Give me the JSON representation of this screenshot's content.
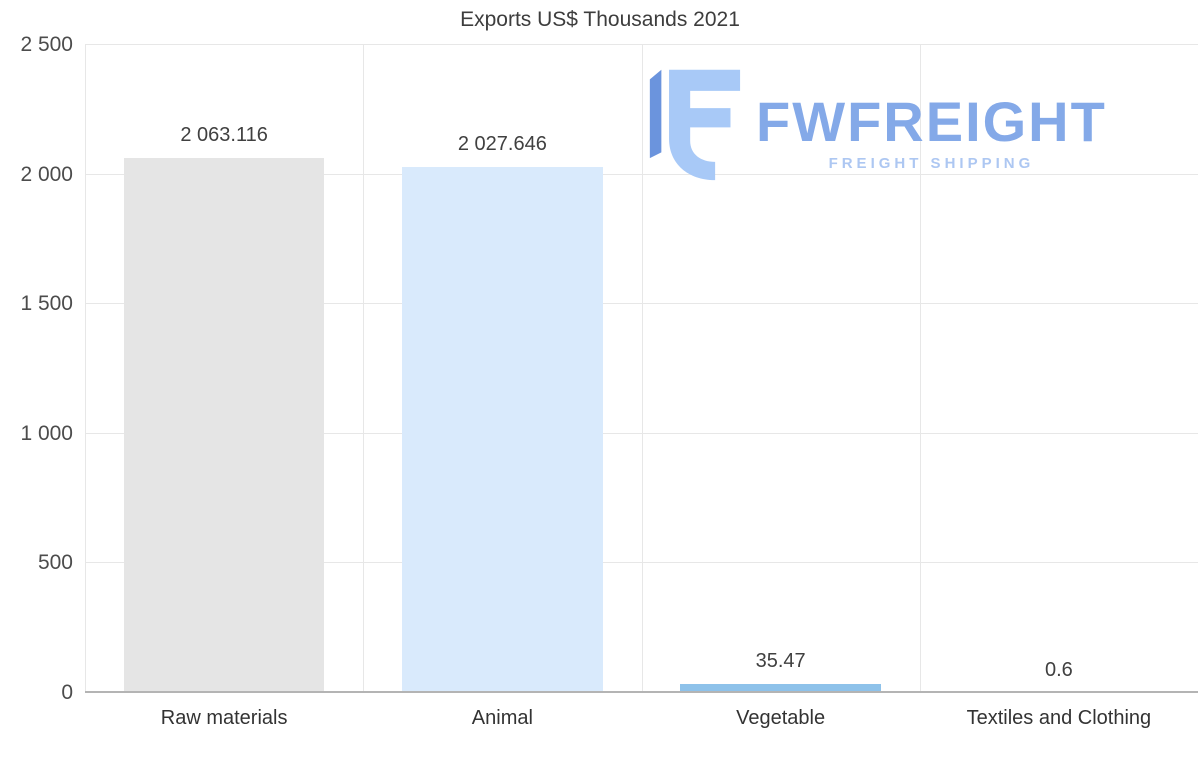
{
  "title": "Exports US$ Thousands 2021",
  "watermark": {
    "brand": "FWFREIGHT",
    "tagline": "FREIGHT SHIPPING",
    "brand_color": "#84a9e8",
    "tagline_color": "#adc7f2",
    "icon_light_color": "#a8c9f7",
    "icon_dark_color": "#6b94dd"
  },
  "chart_data": {
    "type": "bar",
    "title": "Exports US$ Thousands 2021",
    "categories": [
      "Raw materials",
      "Animal",
      "Vegetable",
      "Textiles and Clothing"
    ],
    "values": [
      2063.116,
      2027.646,
      35.47,
      0.6
    ],
    "value_labels": [
      "2 063.116",
      "2 027.646",
      "35.47",
      "0.6"
    ],
    "bar_colors": [
      "#e5e5e5",
      "#d9eafc",
      "#8ec2ea",
      "#bcdcf3"
    ],
    "xlabel": "",
    "ylabel": "",
    "ylim": [
      0,
      2500
    ],
    "yticks": [
      0,
      500,
      1000,
      1500,
      2000,
      2500
    ],
    "ytick_labels": [
      "0",
      "500",
      "1 000",
      "1 500",
      "2 000",
      "2 500"
    ],
    "grid": true,
    "legend": false,
    "category_separator_lines": true
  }
}
